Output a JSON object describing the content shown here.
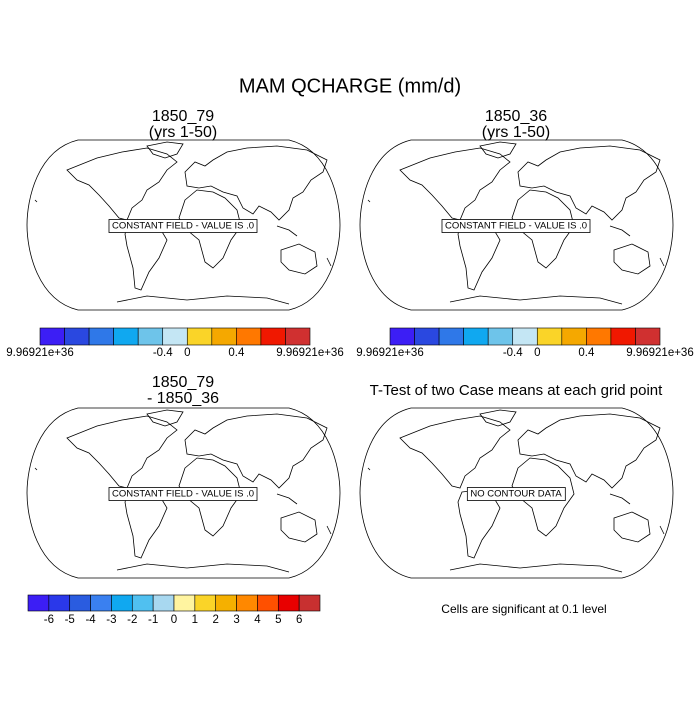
{
  "title": "MAM QCHARGE (mm/d)",
  "panels": [
    {
      "title": [
        "1850_79",
        "(yrs 1-50)"
      ],
      "message": "CONSTANT FIELD - VALUE IS .0"
    },
    {
      "title": [
        "1850_36",
        "(yrs 1-50)"
      ],
      "message": "CONSTANT FIELD - VALUE IS .0"
    },
    {
      "title": [
        "1850_79",
        "- 1850_36"
      ],
      "message": "CONSTANT FIELD - VALUE IS .0"
    },
    {
      "title": [
        "T-Test of two Case means at each grid point"
      ],
      "message": "NO CONTOUR DATA"
    }
  ],
  "colorbars": [
    {
      "colors": [
        "#3c1ef5",
        "#2a48e0",
        "#2f78e8",
        "#10a8f0",
        "#6ec4ea",
        "#c4e6f4",
        "#fad428",
        "#f5a800",
        "#ff7800",
        "#f01800",
        "#d03030"
      ],
      "labels": [
        "9.96921e+36",
        null,
        null,
        null,
        null,
        "-0.4",
        "0",
        null,
        "0.4",
        null,
        null,
        "9.96921e+36"
      ]
    },
    {
      "colors": [
        "#3c1ef5",
        "#2a48e0",
        "#2f78e8",
        "#10a8f0",
        "#6ec4ea",
        "#c4e6f4",
        "#fad428",
        "#f5a800",
        "#ff7800",
        "#f01800",
        "#d03030"
      ],
      "labels": [
        "9.96921e+36",
        null,
        null,
        null,
        null,
        "-0.4",
        "0",
        null,
        "0.4",
        null,
        null,
        "9.96921e+36"
      ]
    },
    {
      "colors": [
        "#3c1ef5",
        "#2a38ea",
        "#2a5ce0",
        "#3a80f0",
        "#10a8f0",
        "#50c0f0",
        "#a8d8f0",
        "#fff4a0",
        "#fad428",
        "#f5b000",
        "#ff8800",
        "#ff5000",
        "#e80000",
        "#c83030"
      ],
      "labels": [
        null,
        "-6",
        "-5",
        "-4",
        "-3",
        "-2",
        "-1",
        "0",
        "1",
        "2",
        "3",
        "4",
        "5",
        "6",
        null
      ]
    }
  ],
  "note": "Cells are significant at 0.1 level"
}
